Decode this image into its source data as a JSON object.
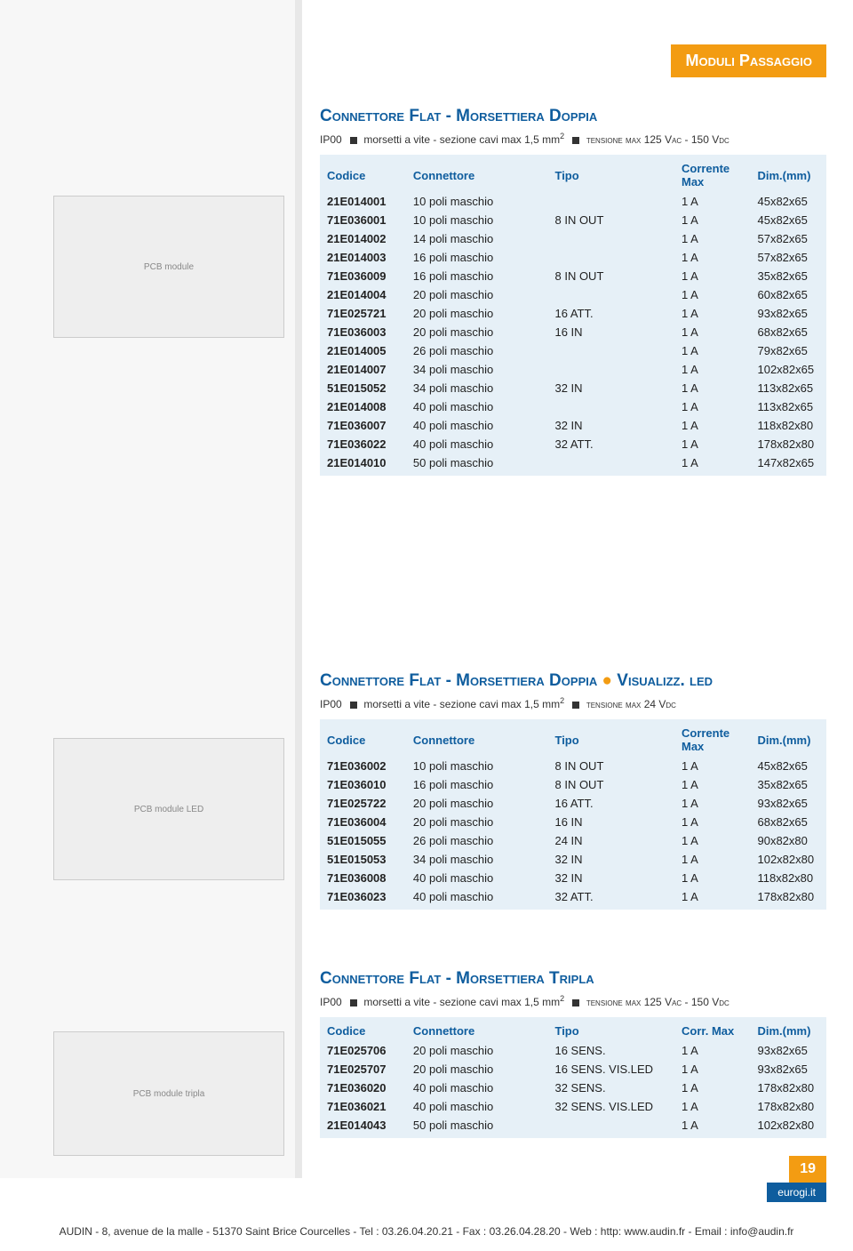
{
  "badge": "Moduli Passaggio",
  "page_num": "19",
  "domain": "eurogi.it",
  "bottom": "AUDIN - 8, avenue de la malle - 51370 Saint Brice Courcelles - Tel : 03.26.04.20.21 - Fax : 03.26.04.28.20 - Web : http: www.audin.fr - Email : info@audin.fr",
  "sections": [
    {
      "title": "Connettore Flat - Morsettiera Doppia",
      "sub_pre": "IP00",
      "sub_a": "morsetti a vite - sezione cavi max 1,5 mm",
      "sub_b": "tensione max 125 Vac - 150 Vdc",
      "headers": [
        "Codice",
        "Connettore",
        "Tipo",
        "Corrente Max",
        "Dim.(mm)"
      ],
      "rows": [
        [
          "21E014001",
          "10 poli maschio",
          "",
          "1 A",
          "45x82x65"
        ],
        [
          "71E036001",
          "10 poli maschio",
          "8 IN OUT",
          "1 A",
          "45x82x65"
        ],
        [
          "21E014002",
          "14 poli maschio",
          "",
          "1 A",
          "57x82x65"
        ],
        [
          "21E014003",
          "16 poli maschio",
          "",
          "1 A",
          "57x82x65"
        ],
        [
          "71E036009",
          "16 poli maschio",
          "8 IN OUT",
          "1 A",
          "35x82x65"
        ],
        [
          "21E014004",
          "20 poli maschio",
          "",
          "1 A",
          "60x82x65"
        ],
        [
          "71E025721",
          "20 poli maschio",
          "16 ATT.",
          "1 A",
          "93x82x65"
        ],
        [
          "71E036003",
          "20 poli maschio",
          "16 IN",
          "1 A",
          "68x82x65"
        ],
        [
          "21E014005",
          "26 poli maschio",
          "",
          "1 A",
          "79x82x65"
        ],
        [
          "21E014007",
          "34 poli maschio",
          "",
          "1 A",
          "102x82x65"
        ],
        [
          "51E015052",
          "34 poli maschio",
          "32 IN",
          "1 A",
          "113x82x65"
        ],
        [
          "21E014008",
          "40 poli maschio",
          "",
          "1 A",
          "113x82x65"
        ],
        [
          "71E036007",
          "40 poli maschio",
          "32 IN",
          "1 A",
          "118x82x80"
        ],
        [
          "71E036022",
          "40 poli maschio",
          "32 ATT.",
          "1 A",
          "178x82x80"
        ],
        [
          "21E014010",
          "50 poli maschio",
          "",
          "1 A",
          "147x82x65"
        ]
      ]
    },
    {
      "title_a": "Connettore Flat - Morsettiera Doppia",
      "title_b": "Visualizz. led",
      "sub_pre": "IP00",
      "sub_a": "morsetti a vite - sezione cavi max 1,5 mm",
      "sub_b": "tensione max 24 Vdc",
      "headers": [
        "Codice",
        "Connettore",
        "Tipo",
        "Corrente Max",
        "Dim.(mm)"
      ],
      "rows": [
        [
          "71E036002",
          "10 poli maschio",
          "8 IN OUT",
          "1 A",
          "45x82x65"
        ],
        [
          "71E036010",
          "16 poli maschio",
          "8 IN OUT",
          "1 A",
          "35x82x65"
        ],
        [
          "71E025722",
          "20 poli maschio",
          "16 ATT.",
          "1 A",
          "93x82x65"
        ],
        [
          "71E036004",
          "20 poli maschio",
          "16 IN",
          "1 A",
          "68x82x65"
        ],
        [
          "51E015055",
          "26 poli maschio",
          "24 IN",
          "1 A",
          "90x82x80"
        ],
        [
          "51E015053",
          "34 poli maschio",
          "32 IN",
          "1 A",
          "102x82x80"
        ],
        [
          "71E036008",
          "40 poli maschio",
          "32 IN",
          "1 A",
          "118x82x80"
        ],
        [
          "71E036023",
          "40 poli maschio",
          "32 ATT.",
          "1 A",
          "178x82x80"
        ]
      ]
    },
    {
      "title": "Connettore Flat - Morsettiera Tripla",
      "sub_pre": "IP00",
      "sub_a": "morsetti a vite - sezione cavi max 1,5 mm",
      "sub_b": "tensione max 125 Vac - 150 Vdc",
      "headers": [
        "Codice",
        "Connettore",
        "Tipo",
        "Corr. Max",
        "Dim.(mm)"
      ],
      "rows": [
        [
          "71E025706",
          "20 poli maschio",
          "16 SENS.",
          "1 A",
          "93x82x65"
        ],
        [
          "71E025707",
          "20 poli maschio",
          "16 SENS. VIS.LED",
          "1 A",
          "93x82x65"
        ],
        [
          "71E036020",
          "40 poli maschio",
          "32 SENS.",
          "1 A",
          "178x82x80"
        ],
        [
          "71E036021",
          "40 poli maschio",
          "32 SENS. VIS.LED",
          "1 A",
          "178x82x80"
        ],
        [
          "21E014043",
          "50 poli maschio",
          "",
          "1 A",
          "102x82x80"
        ]
      ]
    }
  ],
  "colors": {
    "accent": "#f39c12",
    "primary": "#0f5d9e",
    "table_bg": "#e6f0f7",
    "left_bg": "#f7f7f7"
  },
  "col_widths": [
    "17%",
    "28%",
    "25%",
    "15%",
    "15%"
  ]
}
